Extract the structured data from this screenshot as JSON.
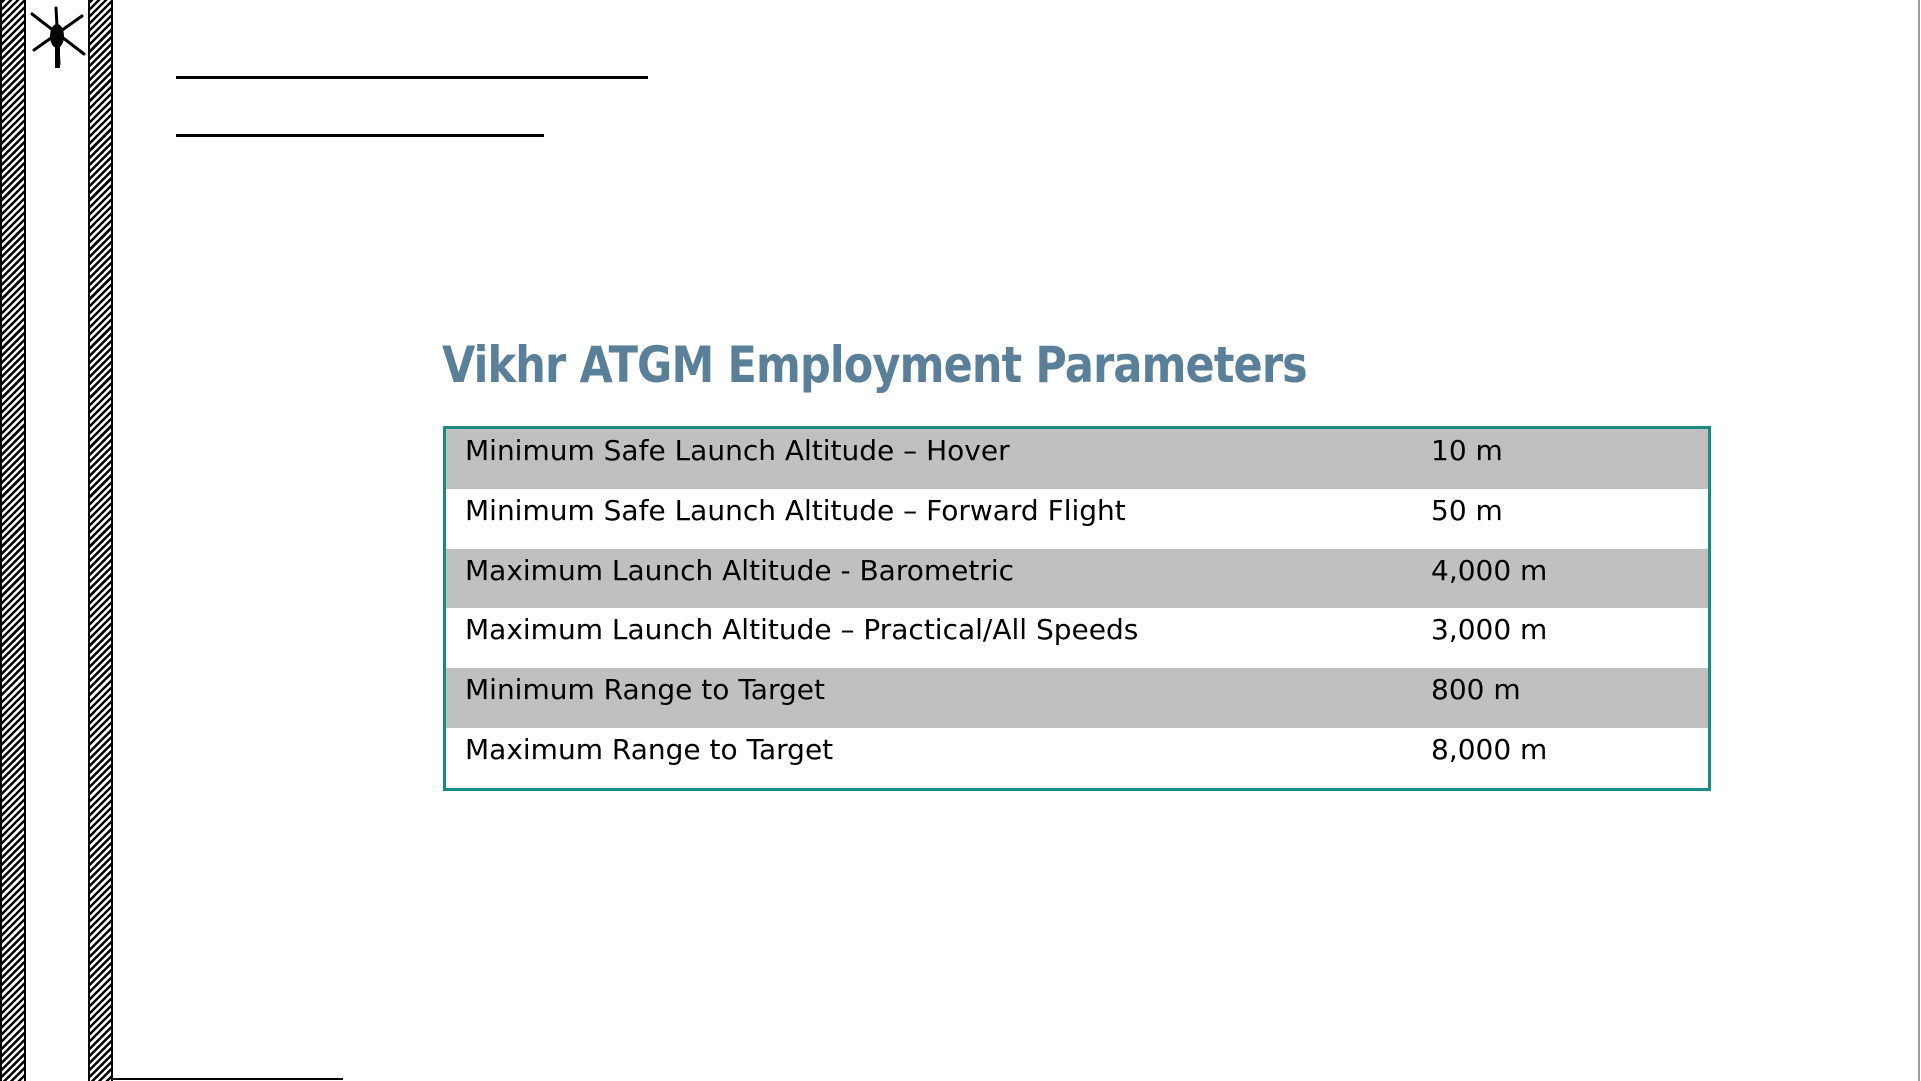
{
  "slide": {
    "title": "Vikhr ATGM Employment Parameters"
  },
  "table": {
    "rows": [
      {
        "parameter": "Minimum Safe Launch Altitude – Hover",
        "value": "10 m"
      },
      {
        "parameter": "Minimum Safe Launch Altitude – Forward Flight",
        "value": "50 m"
      },
      {
        "parameter": "Maximum Launch Altitude - Barometric",
        "value": "4,000 m"
      },
      {
        "parameter": "Maximum Launch Altitude – Practical/All Speeds",
        "value": "3,000 m"
      },
      {
        "parameter": "Minimum Range to Target",
        "value": "800 m"
      },
      {
        "parameter": "Maximum Range to Target",
        "value": "8,000 m"
      }
    ]
  },
  "colors": {
    "title": "#5a7f98",
    "table_border": "#1a8a82",
    "row_shade": "#c0c0c0"
  },
  "icons": {
    "logo": "helicopter-silhouette-icon"
  }
}
